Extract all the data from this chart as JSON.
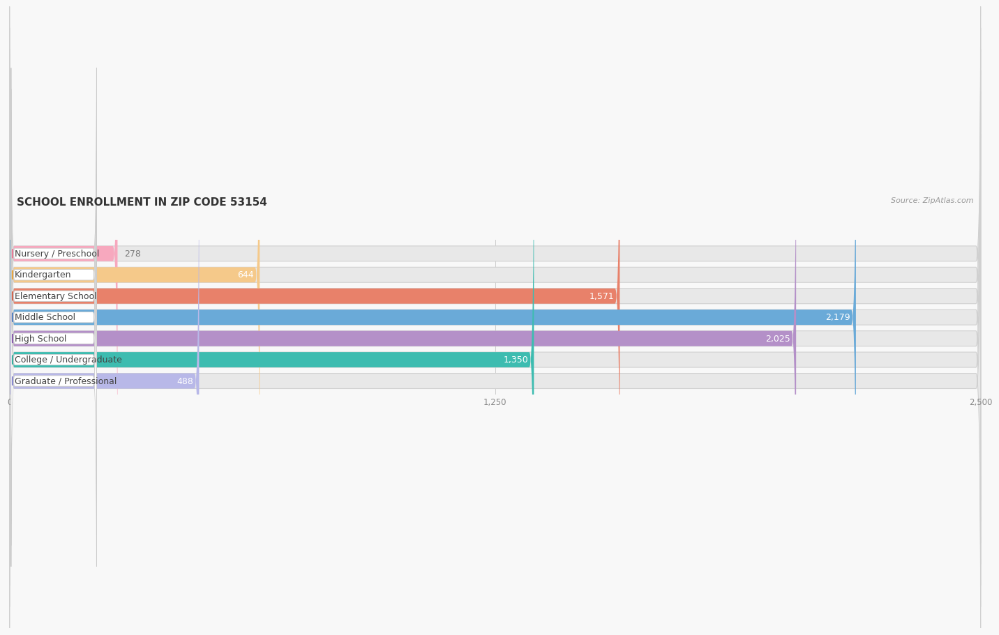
{
  "title": "SCHOOL ENROLLMENT IN ZIP CODE 53154",
  "source": "Source: ZipAtlas.com",
  "categories": [
    "Nursery / Preschool",
    "Kindergarten",
    "Elementary School",
    "Middle School",
    "High School",
    "College / Undergraduate",
    "Graduate / Professional"
  ],
  "values": [
    278,
    644,
    1571,
    2179,
    2025,
    1350,
    488
  ],
  "bar_colors": [
    "#f7a8be",
    "#f5c98a",
    "#e8816a",
    "#6aaad8",
    "#b490c8",
    "#3dbcb0",
    "#b8b8e8"
  ],
  "dot_colors": [
    "#e87090",
    "#e8a030",
    "#d05840",
    "#4878c0",
    "#8050a8",
    "#28a898",
    "#8080cc"
  ],
  "bar_bg_color": "#e8e8e8",
  "xlim": [
    0,
    2500
  ],
  "xticks": [
    0,
    1250,
    2500
  ],
  "title_fontsize": 11,
  "source_fontsize": 8,
  "label_fontsize": 9,
  "value_fontsize": 9,
  "bar_height": 0.72,
  "bg_color": "#f8f8f8",
  "inside_label_threshold": 400
}
